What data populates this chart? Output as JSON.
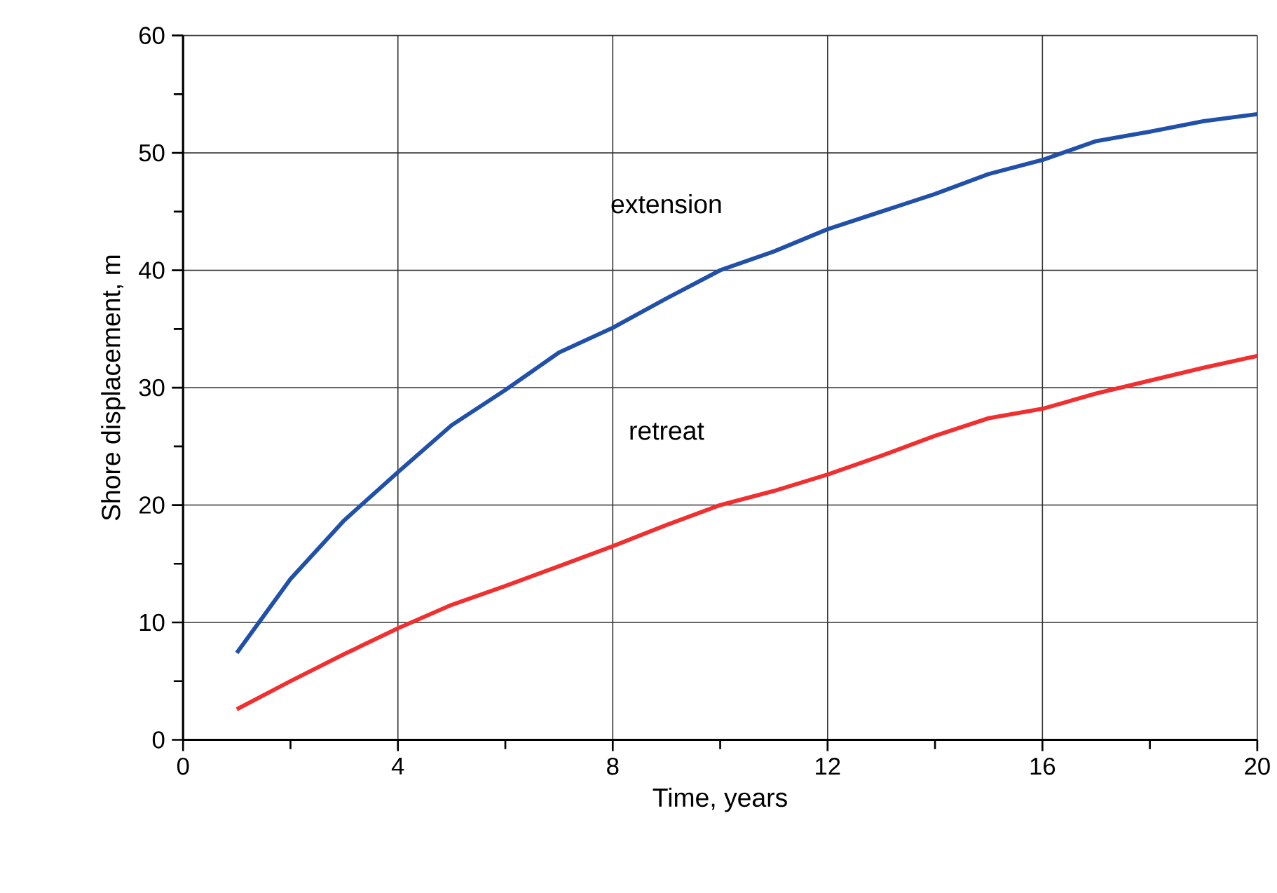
{
  "chart_data": {
    "type": "line",
    "xlabel": "Time, years",
    "ylabel": "Shore displacement, m",
    "x": [
      1,
      2,
      3,
      4,
      5,
      6,
      7,
      8,
      9,
      10,
      11,
      12,
      13,
      14,
      15,
      16,
      17,
      18,
      19,
      20
    ],
    "series": [
      {
        "name": "extension",
        "color": "#2050a8",
        "values": [
          7.4,
          13.7,
          18.7,
          22.8,
          26.8,
          29.8,
          33,
          35.1,
          37.6,
          40,
          41.6,
          43.5,
          45,
          46.5,
          48.2,
          49.4,
          51,
          51.8,
          52.7,
          53.3
        ]
      },
      {
        "name": "retreat",
        "color": "#f03030",
        "values": [
          2.6,
          5,
          7.3,
          9.5,
          11.5,
          13.1,
          14.8,
          16.5,
          18.3,
          20,
          21.2,
          22.6,
          24.2,
          25.9,
          27.4,
          28.2,
          29.5,
          30.6,
          31.7,
          32.7
        ]
      }
    ],
    "xlim": [
      0,
      20
    ],
    "ylim": [
      0,
      60
    ],
    "xticks": [
      0,
      4,
      8,
      12,
      16,
      20
    ],
    "yticks": [
      0,
      10,
      20,
      30,
      40,
      50,
      60
    ],
    "grid": true,
    "legend": false,
    "marker": "none",
    "line_style": "solid"
  }
}
